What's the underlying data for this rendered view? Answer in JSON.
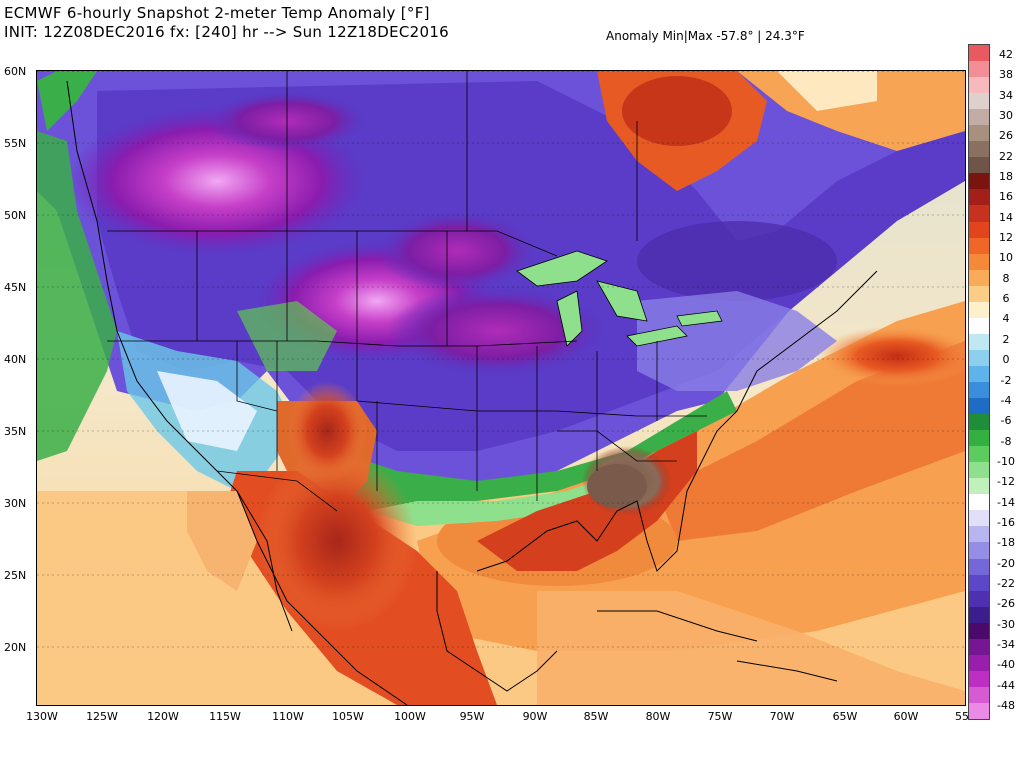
{
  "header": {
    "line1": "ECMWF 6-hourly Snapshot 2-meter Temp Anomaly [°F]",
    "line2": "INIT: 12Z08DEC2016 fx: [240] hr --> Sun 12Z18DEC2016",
    "minmax": "Anomaly Min|Max -57.8° | 24.3°F"
  },
  "map": {
    "lat_labels": [
      "60N",
      "55N",
      "50N",
      "45N",
      "40N",
      "35N",
      "30N",
      "25N",
      "20N"
    ],
    "lon_labels": [
      "130W",
      "125W",
      "120W",
      "115W",
      "110W",
      "105W",
      "100W",
      "95W",
      "90W",
      "85W",
      "80W",
      "75W",
      "70W",
      "65W",
      "60W",
      "55"
    ]
  },
  "colorbar": {
    "labels": [
      "42",
      "38",
      "34",
      "30",
      "26",
      "22",
      "18",
      "16",
      "14",
      "12",
      "10",
      "8",
      "6",
      "4",
      "2",
      "0",
      "-2",
      "-4",
      "-6",
      "-8",
      "-10",
      "-12",
      "-14",
      "-16",
      "-18",
      "-20",
      "-22",
      "-26",
      "-30",
      "-34",
      "-40",
      "-44",
      "-48"
    ],
    "colors": [
      "#e85a60",
      "#f28e96",
      "#f7b8be",
      "#ded0cc",
      "#c2aca5",
      "#a8907f",
      "#8a7060",
      "#6f5548",
      "#7a1410",
      "#a51f1a",
      "#c7321f",
      "#e2441e",
      "#f06628",
      "#f4893a",
      "#f9ab5a",
      "#fccd85",
      "#fef0cc",
      "#ffffff",
      "#bfe8f2",
      "#8dd0ee",
      "#5eb4ea",
      "#3a8fdc",
      "#1e6cc6",
      "#1f8e3a",
      "#33b042",
      "#5ccc5e",
      "#8ee08c",
      "#c1f0bc",
      "#ffffff",
      "#e2e0f8",
      "#b8b6f0",
      "#948ee6",
      "#7468d8",
      "#5c47c8",
      "#4d31b0",
      "#3b1e8c",
      "#4a0a6c",
      "#761692",
      "#9a1ead",
      "#bd2ec2",
      "#d65ad2",
      "#eb8ae6"
    ]
  }
}
